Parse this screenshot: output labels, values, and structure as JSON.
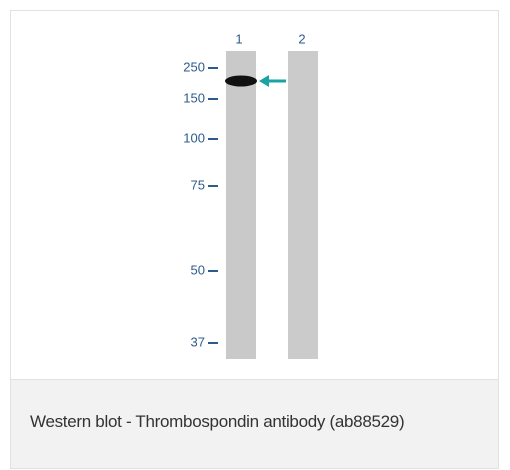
{
  "blot": {
    "lanes": [
      "1",
      "2"
    ],
    "markers": [
      "250",
      "150",
      "100",
      "75",
      "50",
      "37"
    ]
  },
  "caption": "Western blot - Thrombospondin antibody (ab88529)"
}
